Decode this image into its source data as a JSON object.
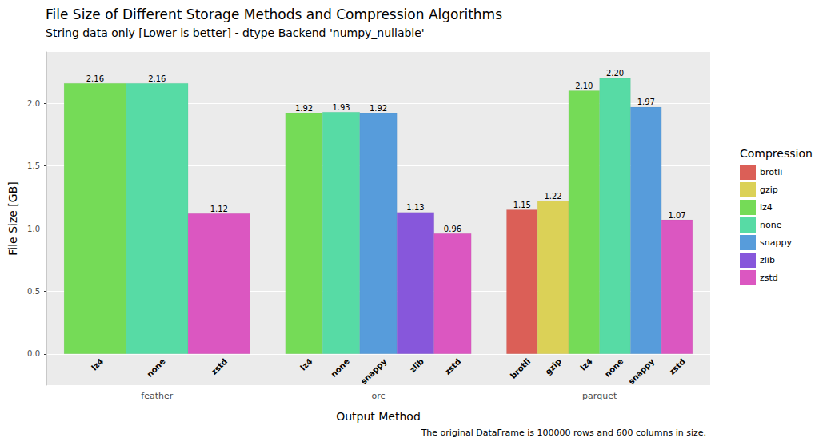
{
  "chart_data": {
    "type": "bar",
    "title": "File Size of Different Storage Methods and Compression Algorithms",
    "subtitle": "String data only [Lower is better] - dtype Backend 'numpy_nullable'",
    "x_label": "Output Method",
    "y_label": "File Size [GB]",
    "caption": "The original DataFrame is 100000 rows and 600 columns in size.",
    "legend_title": "Compression",
    "legend": "right",
    "grid": true,
    "data_labels": true,
    "categories": [
      "feather",
      "orc",
      "parquet"
    ],
    "series": [
      {
        "name": "brotli",
        "color": "#DB5F57",
        "values": [
          null,
          null,
          1.15
        ]
      },
      {
        "name": "gzip",
        "color": "#DBD157",
        "values": [
          null,
          null,
          1.22
        ]
      },
      {
        "name": "lz4",
        "color": "#75DB57",
        "values": [
          2.16,
          1.92,
          2.1
        ],
        "value_labels": [
          "2.16",
          "1.92",
          "2.10"
        ]
      },
      {
        "name": "none",
        "color": "#57DBA5",
        "values": [
          2.16,
          1.93,
          2.2
        ],
        "value_labels": [
          "2.16",
          "1.93",
          "2.20"
        ]
      },
      {
        "name": "snappy",
        "color": "#579CDB",
        "values": [
          null,
          1.92,
          1.97
        ]
      },
      {
        "name": "zlib",
        "color": "#8757DB",
        "values": [
          null,
          1.13,
          null
        ]
      },
      {
        "name": "zstd",
        "color": "#DB57C1",
        "values": [
          1.12,
          0.96,
          1.07
        ]
      }
    ],
    "ylim": [
      -0.25,
      2.41
    ],
    "yticks": [
      {
        "value": 0,
        "label": "0.0"
      },
      {
        "value": 0.5,
        "label": "0.5"
      },
      {
        "value": 1,
        "label": "1.0"
      },
      {
        "value": 1.5,
        "label": "1.5"
      },
      {
        "value": 2,
        "label": "2.0"
      }
    ]
  }
}
